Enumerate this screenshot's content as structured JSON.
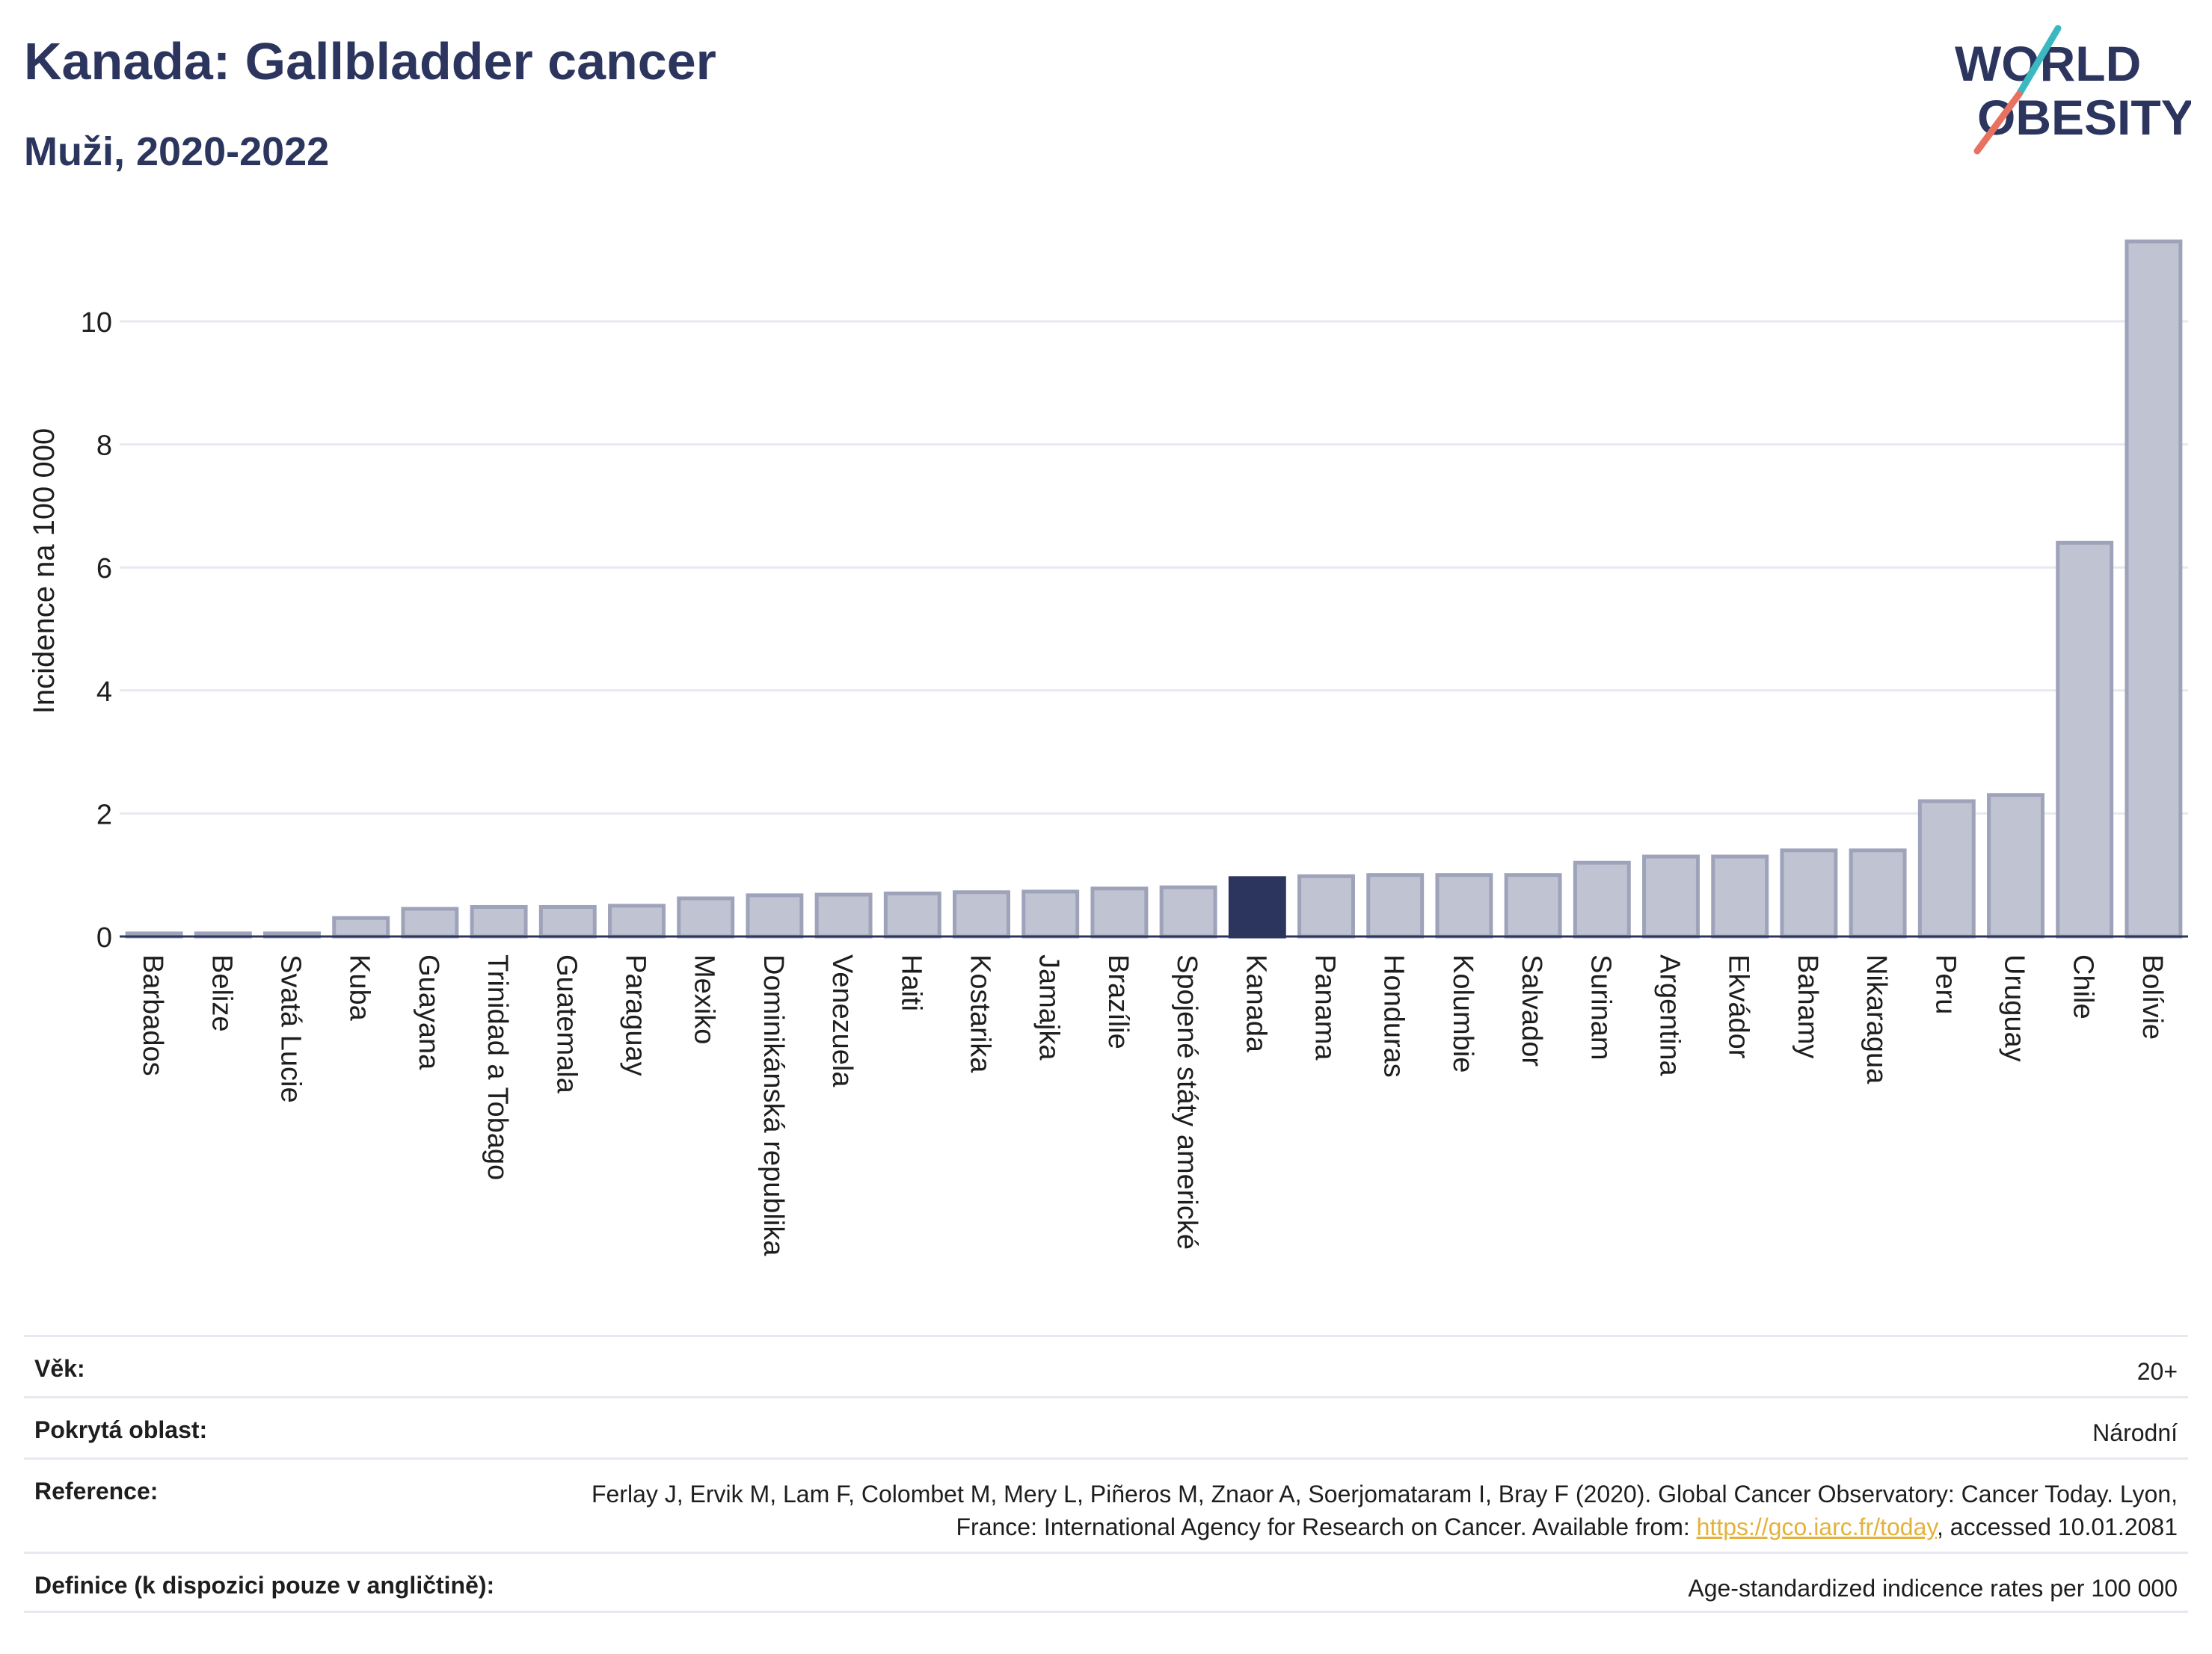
{
  "header": {
    "title": "Kanada: Gallbladder cancer",
    "subtitle": "Muži, 2020-2022"
  },
  "logo": {
    "line1": "WORLD",
    "line2": "OBESITY",
    "icon": "world-obesity-logo"
  },
  "colors": {
    "bar": "#bfc3d2",
    "bar_border": "#9ea3ba",
    "highlight": "#2b355e",
    "text_dark": "#2b355e",
    "link": "#e3b23c",
    "logo_teal": "#3cb8c0",
    "logo_coral": "#e8725f"
  },
  "chart_data": {
    "type": "bar",
    "ylabel": "Incidence na 100 000",
    "ylim": [
      0,
      11.5
    ],
    "yticks": [
      0,
      2,
      4,
      6,
      8,
      10
    ],
    "grid": true,
    "highlight": "Kanada",
    "categories": [
      "Barbados",
      "Belize",
      "Svatá Lucie",
      "Kuba",
      "Guayana",
      "Trinidad a Tobago",
      "Guatemala",
      "Paraguay",
      "Mexiko",
      "Dominikánská republika",
      "Venezuela",
      "Haiti",
      "Kostarika",
      "Jamajka",
      "Brazílie",
      "Spojené státy americké",
      "Kanada",
      "Panama",
      "Honduras",
      "Kolumbie",
      "Salvador",
      "Surinam",
      "Argentina",
      "Ekvádor",
      "Bahamy",
      "Nikaragua",
      "Peru",
      "Uruguay",
      "Chile",
      "Bolívie"
    ],
    "values": [
      0.05,
      0.05,
      0.05,
      0.3,
      0.45,
      0.48,
      0.48,
      0.5,
      0.62,
      0.67,
      0.68,
      0.7,
      0.72,
      0.73,
      0.78,
      0.8,
      0.95,
      0.98,
      1.0,
      1.0,
      1.0,
      1.2,
      1.3,
      1.3,
      1.4,
      1.4,
      2.2,
      2.3,
      6.4,
      11.3
    ]
  },
  "meta": {
    "age_label": "Věk:",
    "age_value": "20+",
    "coverage_label": "Pokrytá oblast:",
    "coverage_value": "Národní",
    "reference_label": "Reference:",
    "reference_text": "Ferlay J, Ervik M, Lam F, Colombet M, Mery L, Piñeros M, Znaor A, Soerjomataram I, Bray F (2020). Global Cancer Observatory: Cancer Today. Lyon, France: International Agency for Research on Cancer. Available from: ",
    "reference_link": "https://gco.iarc.fr/today",
    "reference_suffix": ", accessed 10.01.2081",
    "definition_label": "Definice (k dispozici pouze v angličtině):",
    "definition_value": "Age-standardized indicence rates per 100 000"
  }
}
